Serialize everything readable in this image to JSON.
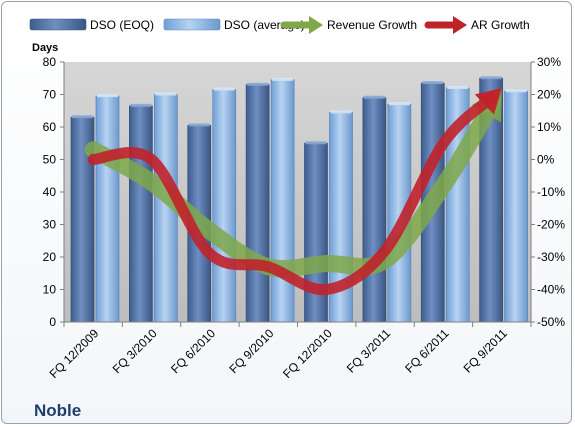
{
  "company": "Noble",
  "colors": {
    "dso_eoq": "#4f6fa3",
    "dso_avg": "#8fb6e3",
    "revenue_growth": "#7fa84a",
    "ar_growth": "#c0222a",
    "plot_bg": "#c9c9c9"
  },
  "chart_data": {
    "type": "bar",
    "ylabel": "Days",
    "ylim": [
      0,
      80
    ],
    "y_ticks": [
      "0",
      "10",
      "20",
      "30",
      "40",
      "50",
      "60",
      "70",
      "80"
    ],
    "y2lim": [
      -50,
      30
    ],
    "y2_ticks": [
      "-50%",
      "-40%",
      "-30%",
      "-20%",
      "-10%",
      "0%",
      "10%",
      "20%",
      "30%"
    ],
    "categories": [
      "FQ 12/2009",
      "FQ 3/2010",
      "FQ 6/2010",
      "FQ 9/2010",
      "FQ 12/2010",
      "FQ 3/2011",
      "FQ 6/2011",
      "FQ 9/2011"
    ],
    "legend_position": "top",
    "grid": false,
    "series": [
      {
        "name": "DSO (EOQ)",
        "kind": "bar",
        "axis": "left",
        "values": [
          63,
          66.5,
          60.5,
          73,
          55,
          69,
          73.5,
          75
        ]
      },
      {
        "name": "DSO (average)",
        "kind": "bar",
        "axis": "left",
        "values": [
          69.5,
          70,
          71.5,
          74.5,
          64.5,
          67,
          72,
          71
        ]
      },
      {
        "name": "Revenue Growth",
        "kind": "arrow",
        "axis": "right",
        "values": [
          3,
          -7,
          -22,
          -33,
          -32,
          -31,
          -8,
          22
        ]
      },
      {
        "name": "AR Growth",
        "kind": "arrow",
        "axis": "right",
        "values": [
          0,
          0,
          -29,
          -33,
          -40,
          -28,
          5,
          22
        ]
      }
    ]
  }
}
